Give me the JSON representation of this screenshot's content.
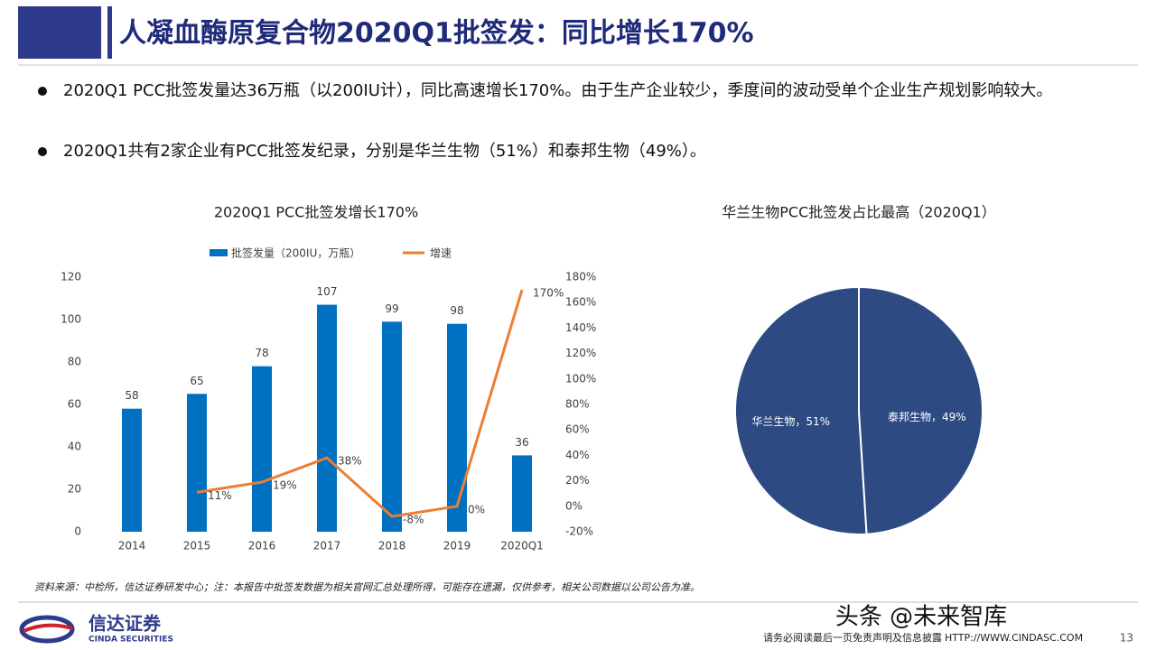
{
  "header": {
    "title": "人凝血酶原复合物2020Q1批签发：同比增长170%"
  },
  "bullets": [
    "2020Q1 PCC批签发量达36万瓶（以200IU计），同比高速增长170%。由于生产企业较少，季度间的波动受单个企业生产规划影响较大。",
    "2020Q1共有2家企业有PCC批签发纪录，分别是华兰生物（51%）和泰邦生物（49%）。"
  ],
  "chart_data": [
    {
      "type": "bar-line",
      "title": "2020Q1 PCC批签发增长170%",
      "categories": [
        "2014",
        "2015",
        "2016",
        "2017",
        "2018",
        "2019",
        "2020Q1"
      ],
      "series": [
        {
          "name": "批签发量（200IU，万瓶）",
          "type": "bar",
          "color": "#0070c0",
          "values": [
            58,
            65,
            78,
            107,
            99,
            98,
            36
          ]
        },
        {
          "name": "增速",
          "type": "line",
          "axis": "y2",
          "color": "#ed7d31",
          "values": [
            null,
            11,
            19,
            38,
            -8,
            0,
            170
          ],
          "value_labels": [
            null,
            "11%",
            "19%",
            "38%",
            "-8%",
            "0%",
            "170%"
          ]
        }
      ],
      "ylim": [
        0,
        120
      ],
      "yticks": [
        0,
        20,
        40,
        60,
        80,
        100,
        120
      ],
      "y2lim": [
        -20,
        180
      ],
      "y2ticks": [
        {
          "value": -20,
          "label": "-20%"
        },
        {
          "value": 0,
          "label": "0%"
        },
        {
          "value": 20,
          "label": "20%"
        },
        {
          "value": 40,
          "label": "40%"
        },
        {
          "value": 60,
          "label": "60%"
        },
        {
          "value": 80,
          "label": "80%"
        },
        {
          "value": 100,
          "label": "100%"
        },
        {
          "value": 120,
          "label": "120%"
        },
        {
          "value": 140,
          "label": "140%"
        },
        {
          "value": 160,
          "label": "160%"
        },
        {
          "value": 180,
          "label": "180%"
        }
      ],
      "grid": false,
      "legend": "top"
    },
    {
      "type": "pie",
      "title": "华兰生物PCC批签发占比最高（2020Q1）",
      "categories": [
        "华兰生物",
        "泰邦生物"
      ],
      "values": [
        51,
        49
      ],
      "value_labels": [
        "华兰生物，51%",
        "泰邦生物，49%"
      ],
      "color": "#2e4a82"
    }
  ],
  "source": "资料来源：中检所，信达证券研发中心；注：本报告中批签发数据为相关官网汇总处理所得，可能存在遗漏，仅供参考，相关公司数据以公司公告为准。",
  "footer": {
    "logo_cn": "信达证券",
    "logo_en": "CINDA SECURITIES",
    "disclaimer": "请务必阅读最后一页免责声明及信息披露",
    "url": "HTTP://WWW.CINDASC.COM",
    "page": "13",
    "watermark": "头条 @未来智库"
  }
}
